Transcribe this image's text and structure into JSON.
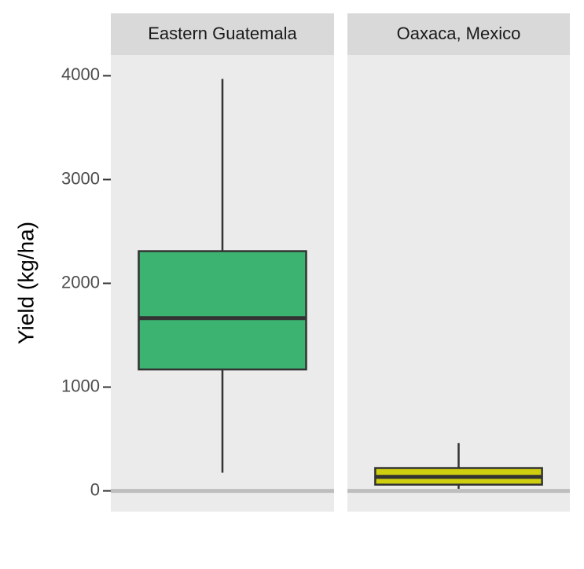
{
  "chart_data": {
    "type": "box",
    "y_label": "Yield (kg/ha)",
    "categories": [
      "Eastern Guatemala",
      "Oaxaca, Mexico"
    ],
    "colors": [
      "#3cb371",
      "#cfcf10"
    ],
    "boxes": [
      {
        "whisker_low": 175,
        "q1": 1170,
        "median": 1665,
        "q3": 2310,
        "whisker_high": 3970
      },
      {
        "whisker_low": 20,
        "q1": 60,
        "median": 135,
        "q3": 220,
        "whisker_high": 460
      }
    ],
    "hline": 0,
    "ylim": [
      -200,
      4200
    ],
    "yticks": [
      0,
      1000,
      2000,
      3000,
      4000
    ]
  }
}
